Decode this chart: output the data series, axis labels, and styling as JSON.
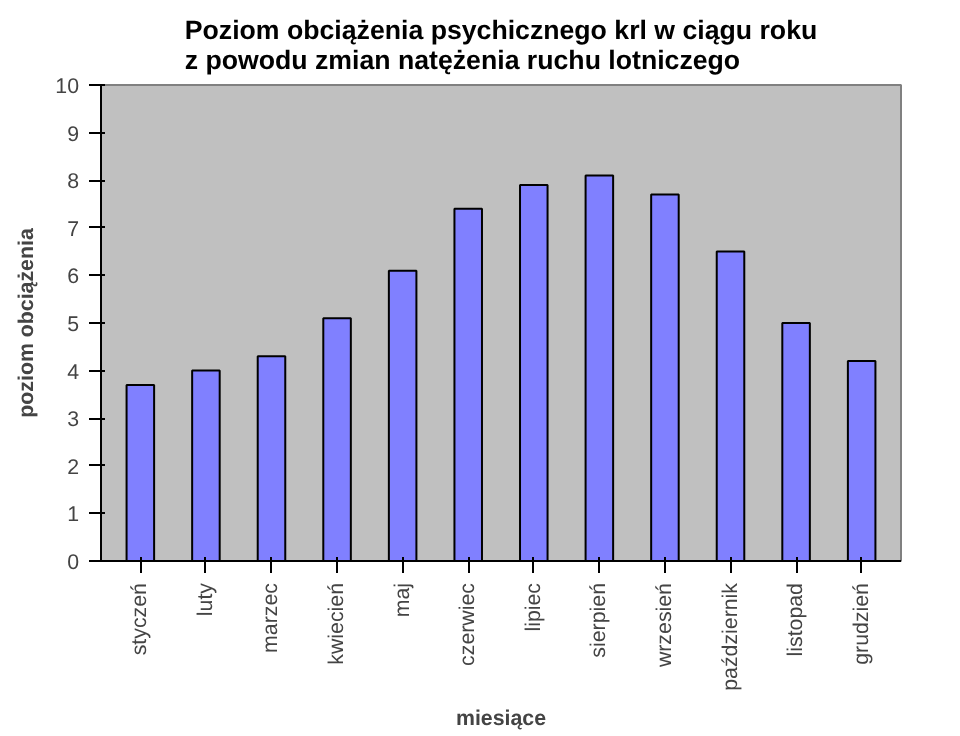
{
  "chart_data": {
    "type": "bar",
    "title": "Poziom obciążenia psychicznego krl w ciągu roku\nz powodu zmian natężenia ruchu lotniczego",
    "xlabel": "miesiące",
    "ylabel": "poziom obciążenia",
    "categories": [
      "styczeń",
      "luty",
      "marzec",
      "kwiecień",
      "maj",
      "czerwiec",
      "lipiec",
      "sierpień",
      "wrzesień",
      "październik",
      "listopad",
      "grudzień"
    ],
    "values": [
      3.7,
      4.0,
      4.3,
      5.1,
      6.1,
      7.4,
      7.9,
      8.1,
      7.7,
      6.5,
      5.0,
      4.2
    ],
    "color": "#8080ff",
    "ylim": [
      0,
      10
    ],
    "yticks": [
      0,
      1,
      2,
      3,
      4,
      5,
      6,
      7,
      8,
      9,
      10
    ],
    "grid": false
  }
}
